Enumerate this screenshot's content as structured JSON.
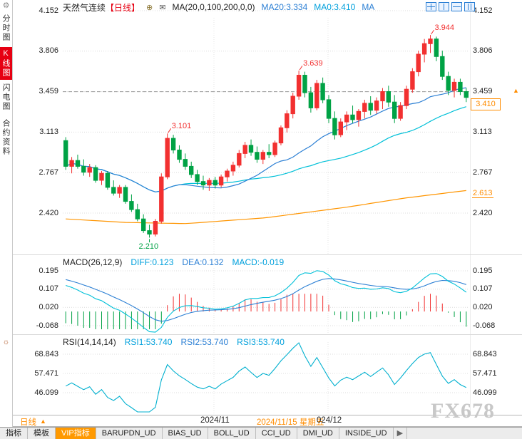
{
  "window": {
    "watermark": "FX678"
  },
  "icons": {
    "gear": "⚙",
    "sun": "☼",
    "circle": "⊕",
    "envelope": "✉"
  },
  "sidebar": {
    "tabs": [
      {
        "id": "time-chart",
        "label": "分时图",
        "active": false
      },
      {
        "id": "kline-chart",
        "label": "K线图",
        "active": true
      },
      {
        "id": "lightning-chart",
        "label": "闪电图",
        "active": false
      },
      {
        "id": "contract-info",
        "label": "合约资料",
        "active": false
      }
    ]
  },
  "header": {
    "instrument": "天然气连续",
    "period_tag": "【日线】",
    "ma_formula": "MA(20,0,100,200,0,0)",
    "ma20_label": "MA20:3.334",
    "ma0_label": "MA0:3.410",
    "ma_extra": "MA"
  },
  "macd_header": {
    "formula": "MACD(26,12,9)",
    "diff": "DIFF:0.123",
    "dea": "DEA:0.132",
    "macd": "MACD:-0.019"
  },
  "rsi_header": {
    "formula": "RSI(14,14,14)",
    "rsi1": "RSI1:53.740",
    "rsi2": "RSI2:53.740",
    "rsi3": "RSI3:53.740"
  },
  "right_axis": {
    "last_price": "3.410",
    "ma200_value": "2.613",
    "marker": "▲"
  },
  "bottom": {
    "period_label": "日线",
    "period_marker": "▲",
    "dates": [
      {
        "text": "2024/11",
        "highlight": false
      },
      {
        "text": "2024/11/15 星期五",
        "highlight": true
      },
      {
        "text": "024/12",
        "highlight": false
      }
    ]
  },
  "toolbar": {
    "items": [
      {
        "label": "指标",
        "active": false
      },
      {
        "label": "模板",
        "active": false
      },
      {
        "label": "VIP指标",
        "active": true
      },
      {
        "label": "BARUPDN_UD",
        "active": false
      },
      {
        "label": "BIAS_UD",
        "active": false
      },
      {
        "label": "BOLL_UD",
        "active": false
      },
      {
        "label": "CCI_UD",
        "active": false
      },
      {
        "label": "DMI_UD",
        "active": false
      },
      {
        "label": "INSIDE_UD",
        "active": false
      }
    ],
    "scroll_arrow": "▶"
  },
  "colors": {
    "up": "#f23030",
    "down": "#00a245",
    "ma20": "#2b7fd4",
    "ma_mid": "#00c0d8",
    "ma200": "#ff9500",
    "accent": "#ff8c00",
    "grid": "#dcdcdc",
    "dashed_line": "#999999",
    "rsi_line": "#00b0cf"
  },
  "chart_data": [
    {
      "type": "candlestick",
      "title": "天然气连续 日线",
      "y_ticks": [
        "4.152",
        "3.806",
        "3.459",
        "3.113",
        "2.767",
        "2.420"
      ],
      "ylim": [
        2.079,
        4.152
      ],
      "dashed_level": 3.459,
      "last_price": 3.41,
      "ma_values": {
        "ma20": 3.334,
        "ma0": 3.41,
        "ma200": 2.613
      },
      "ma200_control": [
        [
          0,
          2.37
        ],
        [
          0.15,
          2.34
        ],
        [
          0.3,
          2.33
        ],
        [
          0.5,
          2.38
        ],
        [
          0.7,
          2.47
        ],
        [
          0.85,
          2.55
        ],
        [
          1,
          2.613
        ]
      ],
      "annotations": [
        {
          "index": 61,
          "price": 3.944,
          "text": "3.944",
          "dir": "up"
        },
        {
          "index": 39,
          "price": 3.639,
          "text": "3.639",
          "dir": "up"
        },
        {
          "index": 17,
          "price": 3.101,
          "text": "3.101",
          "dir": "up"
        },
        {
          "index": 14,
          "price": 2.21,
          "text": "2.210",
          "dir": "down"
        }
      ],
      "candles": [
        [
          3.04,
          3.07,
          2.79,
          2.82
        ],
        [
          2.82,
          2.9,
          2.76,
          2.87
        ],
        [
          2.87,
          2.92,
          2.8,
          2.82
        ],
        [
          2.82,
          2.88,
          2.74,
          2.77
        ],
        [
          2.77,
          2.84,
          2.73,
          2.81
        ],
        [
          2.81,
          2.83,
          2.68,
          2.7
        ],
        [
          2.7,
          2.78,
          2.66,
          2.76
        ],
        [
          2.76,
          2.78,
          2.62,
          2.64
        ],
        [
          2.64,
          2.7,
          2.57,
          2.59
        ],
        [
          2.59,
          2.66,
          2.55,
          2.64
        ],
        [
          2.64,
          2.66,
          2.5,
          2.52
        ],
        [
          2.52,
          2.58,
          2.43,
          2.45
        ],
        [
          2.45,
          2.5,
          2.35,
          2.37
        ],
        [
          2.37,
          2.41,
          2.25,
          2.27
        ],
        [
          2.27,
          2.32,
          2.21,
          2.24
        ],
        [
          2.24,
          2.37,
          2.22,
          2.35
        ],
        [
          2.35,
          2.76,
          2.33,
          2.73
        ],
        [
          2.73,
          3.101,
          2.71,
          3.06
        ],
        [
          3.06,
          3.09,
          2.93,
          2.96
        ],
        [
          2.96,
          3.0,
          2.85,
          2.88
        ],
        [
          2.88,
          2.93,
          2.79,
          2.82
        ],
        [
          2.82,
          2.86,
          2.72,
          2.75
        ],
        [
          2.75,
          2.79,
          2.66,
          2.69
        ],
        [
          2.69,
          2.74,
          2.62,
          2.66
        ],
        [
          2.66,
          2.72,
          2.61,
          2.7
        ],
        [
          2.7,
          2.73,
          2.63,
          2.66
        ],
        [
          2.66,
          2.75,
          2.64,
          2.73
        ],
        [
          2.73,
          2.8,
          2.69,
          2.78
        ],
        [
          2.78,
          2.86,
          2.74,
          2.83
        ],
        [
          2.83,
          2.96,
          2.81,
          2.93
        ],
        [
          2.93,
          3.03,
          2.89,
          3.0
        ],
        [
          3.0,
          3.05,
          2.91,
          2.94
        ],
        [
          2.94,
          2.99,
          2.85,
          2.88
        ],
        [
          2.88,
          2.96,
          2.84,
          2.94
        ],
        [
          2.94,
          3.01,
          2.89,
          2.92
        ],
        [
          2.92,
          3.04,
          2.9,
          3.02
        ],
        [
          3.02,
          3.17,
          3.0,
          3.15
        ],
        [
          3.15,
          3.3,
          3.11,
          3.27
        ],
        [
          3.27,
          3.45,
          3.23,
          3.42
        ],
        [
          3.42,
          3.639,
          3.39,
          3.6
        ],
        [
          3.6,
          3.63,
          3.41,
          3.45
        ],
        [
          3.45,
          3.5,
          3.28,
          3.32
        ],
        [
          3.32,
          3.56,
          3.3,
          3.53
        ],
        [
          3.53,
          3.58,
          3.36,
          3.39
        ],
        [
          3.39,
          3.43,
          3.19,
          3.23
        ],
        [
          3.23,
          3.29,
          3.05,
          3.09
        ],
        [
          3.09,
          3.23,
          3.07,
          3.2
        ],
        [
          3.2,
          3.29,
          3.13,
          3.26
        ],
        [
          3.26,
          3.34,
          3.19,
          3.22
        ],
        [
          3.22,
          3.31,
          3.16,
          3.29
        ],
        [
          3.29,
          3.39,
          3.23,
          3.36
        ],
        [
          3.36,
          3.42,
          3.26,
          3.3
        ],
        [
          3.3,
          3.41,
          3.27,
          3.38
        ],
        [
          3.38,
          3.49,
          3.31,
          3.46
        ],
        [
          3.46,
          3.51,
          3.33,
          3.37
        ],
        [
          3.37,
          3.43,
          3.19,
          3.23
        ],
        [
          3.23,
          3.37,
          3.21,
          3.34
        ],
        [
          3.34,
          3.51,
          3.31,
          3.48
        ],
        [
          3.48,
          3.66,
          3.45,
          3.63
        ],
        [
          3.63,
          3.81,
          3.59,
          3.78
        ],
        [
          3.78,
          3.91,
          3.71,
          3.87
        ],
        [
          3.87,
          3.944,
          3.79,
          3.91
        ],
        [
          3.91,
          3.93,
          3.72,
          3.76
        ],
        [
          3.76,
          3.81,
          3.56,
          3.59
        ],
        [
          3.59,
          3.63,
          3.43,
          3.47
        ],
        [
          3.47,
          3.57,
          3.41,
          3.54
        ],
        [
          3.54,
          3.57,
          3.43,
          3.46
        ],
        [
          3.46,
          3.49,
          3.37,
          3.41
        ]
      ]
    },
    {
      "type": "macd",
      "formula": "MACD(26,12,9)",
      "diff": 0.123,
      "dea": 0.132,
      "macd": -0.019,
      "y_ticks": [
        "0.195",
        "0.107",
        "0.020",
        "-0.068"
      ]
    },
    {
      "type": "rsi",
      "formula": "RSI(14,14,14)",
      "rsi1": 53.74,
      "rsi2": 53.74,
      "rsi3": 53.74,
      "y_ticks": [
        "68.843",
        "57.471",
        "46.099"
      ]
    }
  ]
}
